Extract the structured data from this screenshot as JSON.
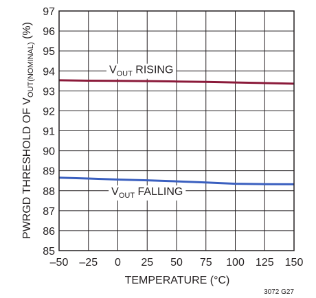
{
  "chart_data": {
    "type": "line",
    "xlabel": "TEMPERATURE (°C)",
    "ylabel_parts": {
      "main": "PWRGD THRESHOLD OF V",
      "sub": "OUT(NOMINAL)",
      "tail": " (%)"
    },
    "xlim": [
      -50,
      150
    ],
    "ylim": [
      85,
      97
    ],
    "x_ticks": [
      -50,
      -25,
      0,
      25,
      50,
      75,
      100,
      125,
      150
    ],
    "x_tick_labels": [
      "–50",
      "–25",
      "0",
      "25",
      "50",
      "75",
      "100",
      "125",
      "150"
    ],
    "y_ticks": [
      85,
      86,
      87,
      88,
      89,
      90,
      91,
      92,
      93,
      94,
      95,
      96,
      97
    ],
    "grid": true,
    "series": [
      {
        "label_main": "V",
        "label_sub": "OUT",
        "label_tail": " RISING",
        "color": "#8b1a3a",
        "label_x": 20,
        "label_y": 93.95,
        "x": [
          -50,
          -25,
          0,
          25,
          50,
          75,
          100,
          125,
          150
        ],
        "y": [
          93.53,
          93.51,
          93.5,
          93.49,
          93.47,
          93.45,
          93.42,
          93.39,
          93.36
        ]
      },
      {
        "label_main": "V",
        "label_sub": "OUT",
        "label_tail": " FALLING",
        "color": "#3a5fbf",
        "label_x": 25,
        "label_y": 87.85,
        "x": [
          -50,
          -25,
          0,
          25,
          50,
          75,
          100,
          125,
          150
        ],
        "y": [
          88.65,
          88.61,
          88.56,
          88.52,
          88.47,
          88.41,
          88.35,
          88.33,
          88.32
        ]
      }
    ],
    "figure_code": "3072 G27"
  }
}
